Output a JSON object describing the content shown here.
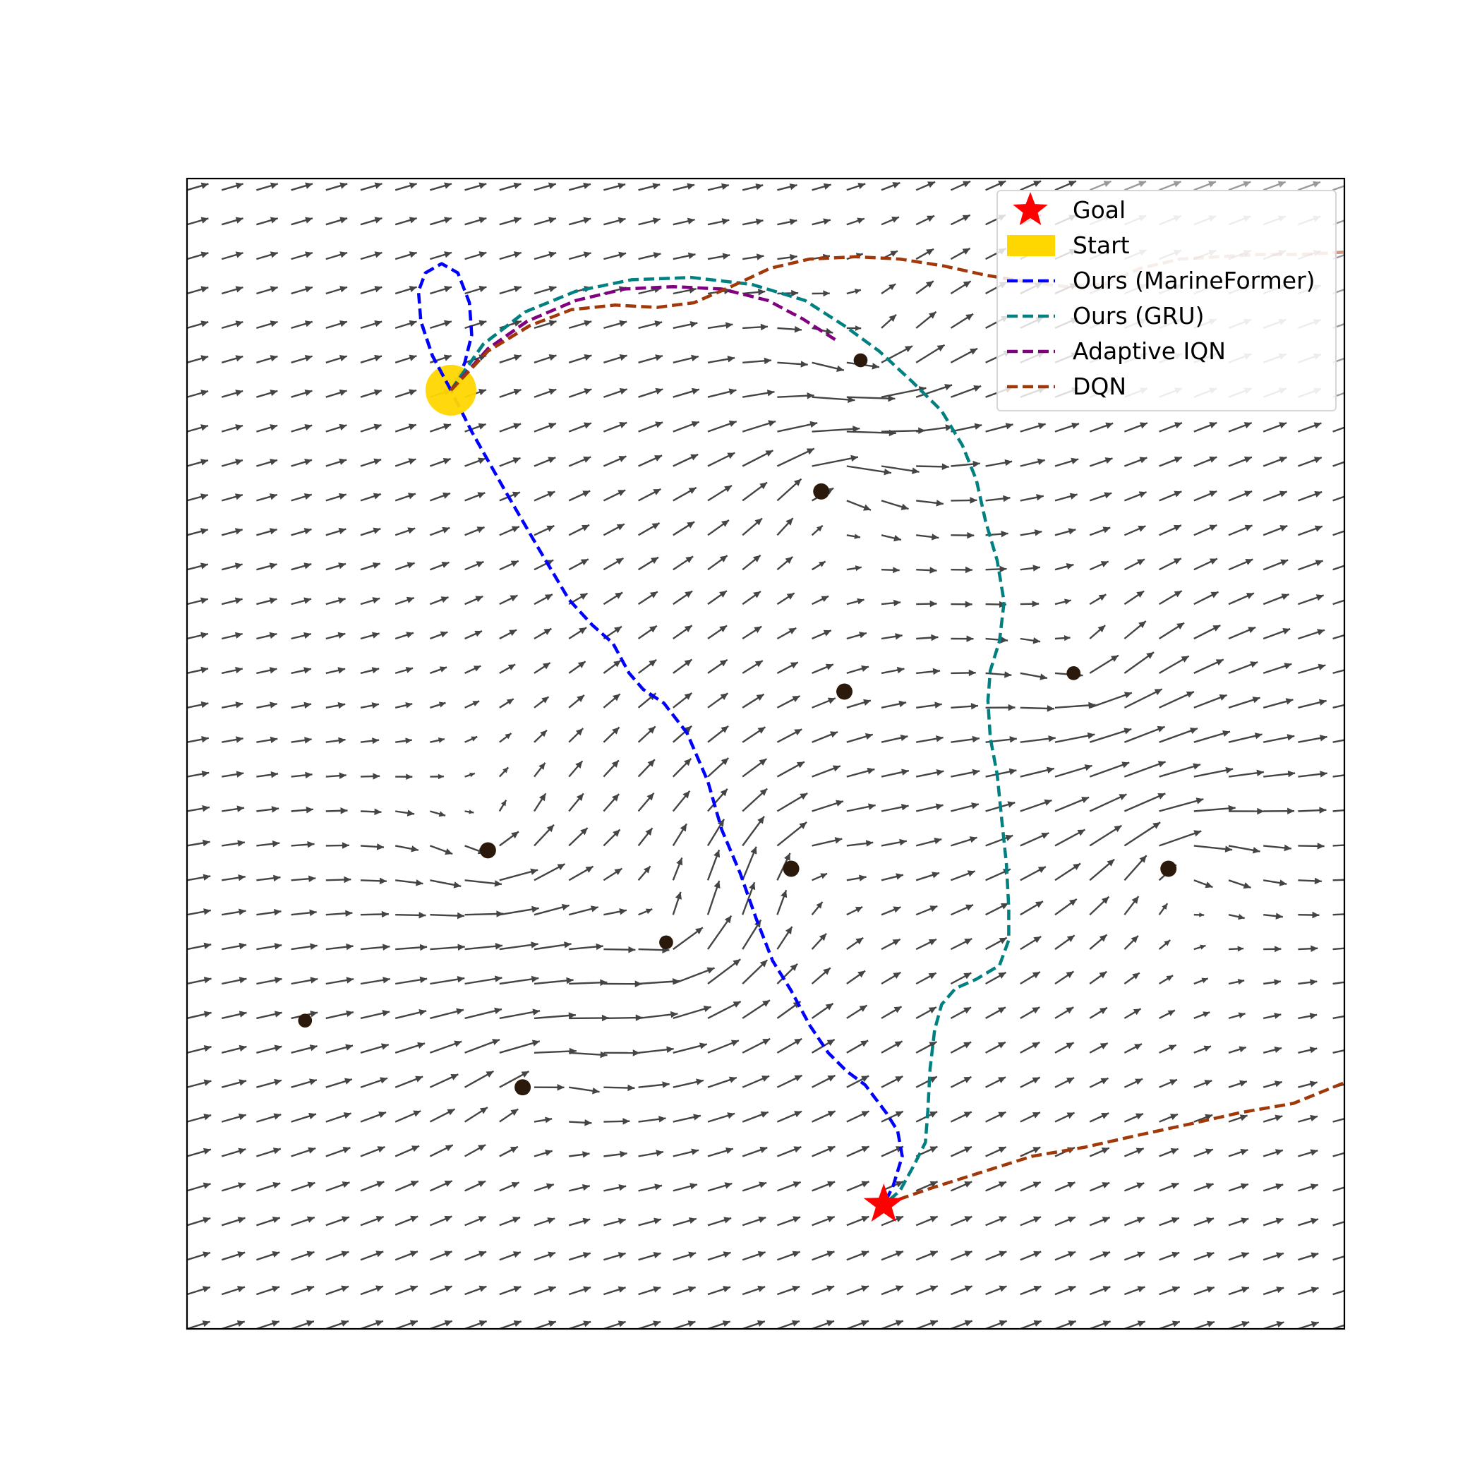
{
  "chart_data": {
    "type": "line",
    "title": "",
    "xlabel": "",
    "ylabel": "",
    "xlim": [
      0,
      50
    ],
    "ylim": [
      0,
      50
    ],
    "grid": false,
    "legend_placement": "top-right",
    "legend": [
      {
        "key": "goal",
        "label": "Goal"
      },
      {
        "key": "start",
        "label": "Start"
      },
      {
        "key": "marineformer",
        "label": "Ours (MarineFormer)"
      },
      {
        "key": "gru",
        "label": "Ours (GRU)"
      },
      {
        "key": "iqn",
        "label": "Adaptive IQN"
      },
      {
        "key": "dqn",
        "label": "DQN"
      }
    ],
    "colors": {
      "goal": "#ff0000",
      "start": "#ffd700",
      "marineformer": "#0000ff",
      "gru": "#008080",
      "iqn": "#800080",
      "dqn": "#a0380a",
      "obstacle": "#2b1a0c",
      "arrow": "#444444"
    },
    "goal": [
      30.1,
      5.4
    ],
    "start": [
      11.4,
      40.8
    ],
    "obstacles": [
      {
        "x": 29.1,
        "y": 42.1,
        "r": 0.3
      },
      {
        "x": 27.4,
        "y": 36.4,
        "r": 0.35
      },
      {
        "x": 28.4,
        "y": 27.7,
        "r": 0.35
      },
      {
        "x": 38.3,
        "y": 28.5,
        "r": 0.3
      },
      {
        "x": 13.0,
        "y": 20.8,
        "r": 0.35
      },
      {
        "x": 26.1,
        "y": 20.0,
        "r": 0.35
      },
      {
        "x": 42.4,
        "y": 20.0,
        "r": 0.35
      },
      {
        "x": 20.7,
        "y": 16.8,
        "r": 0.3
      },
      {
        "x": 5.1,
        "y": 13.4,
        "r": 0.3
      },
      {
        "x": 14.5,
        "y": 10.5,
        "r": 0.35
      }
    ],
    "series": [
      {
        "key": "marineformer",
        "name": "Ours (MarineFormer)",
        "x": [
          11.4,
          10.6,
          10.1,
          10.0,
          10.3,
          11.0,
          11.7,
          12.2,
          12.3,
          12.0,
          11.6,
          11.4,
          12.3,
          13.7,
          15.2,
          16.5,
          17.5,
          18.4,
          19.1,
          19.7,
          20.6,
          21.6,
          22.5,
          23.1,
          23.9,
          24.6,
          25.3,
          26.1,
          26.9,
          27.7,
          28.5,
          29.3,
          30.2,
          30.7,
          30.9,
          30.5,
          30.1
        ],
        "y": [
          40.8,
          42.3,
          43.8,
          45.1,
          45.9,
          46.3,
          45.9,
          44.6,
          43.2,
          42.0,
          41.0,
          40.8,
          39.0,
          36.5,
          33.9,
          31.7,
          30.6,
          29.8,
          28.5,
          27.8,
          27.2,
          25.9,
          23.8,
          21.7,
          19.8,
          17.8,
          16.0,
          14.7,
          13.2,
          12.0,
          11.2,
          10.6,
          9.4,
          8.6,
          7.5,
          6.2,
          5.4
        ]
      },
      {
        "key": "gru",
        "name": "Ours (GRU)",
        "x": [
          11.4,
          12.8,
          14.6,
          16.8,
          19.2,
          21.8,
          24.4,
          26.7,
          28.4,
          29.9,
          31.3,
          32.6,
          33.5,
          34.1,
          34.5,
          35.0,
          35.3,
          35.1,
          34.7,
          34.6,
          34.7,
          35.0,
          35.2,
          35.4,
          35.5,
          35.5,
          35.1,
          34.1,
          33.2,
          32.6,
          32.3,
          32.1,
          32.0,
          31.9,
          31.4,
          30.8,
          30.1
        ],
        "y": [
          40.8,
          42.8,
          44.2,
          45.1,
          45.6,
          45.7,
          45.4,
          44.7,
          43.6,
          42.5,
          41.2,
          39.9,
          38.4,
          36.9,
          35.1,
          33.4,
          31.6,
          29.9,
          28.6,
          27.3,
          25.7,
          24.1,
          22.1,
          20.2,
          18.3,
          16.9,
          15.8,
          15.2,
          14.8,
          14.1,
          13.0,
          11.3,
          9.4,
          8.1,
          7.1,
          6.0,
          5.4
        ]
      },
      {
        "key": "iqn",
        "name": "Adaptive IQN",
        "x": [
          11.4,
          13.0,
          14.7,
          16.8,
          18.9,
          21.0,
          23.1,
          25.1,
          26.6,
          28.0
        ],
        "y": [
          40.8,
          42.6,
          43.8,
          44.7,
          45.2,
          45.3,
          45.2,
          44.7,
          43.9,
          43.0
        ]
      },
      {
        "key": "dqn",
        "name": "DQN",
        "x": [
          11.4,
          13.0,
          14.8,
          16.6,
          18.5,
          20.3,
          21.9,
          23.5,
          25.2,
          26.9,
          28.9,
          30.8,
          32.7,
          34.5,
          36.3
        ],
        "y": [
          40.8,
          42.5,
          43.6,
          44.3,
          44.5,
          44.4,
          44.6,
          45.3,
          46.1,
          46.5,
          46.6,
          46.5,
          46.2,
          45.8,
          45.5
        ]
      },
      {
        "key": "dqn",
        "name": "DQN",
        "faded": true,
        "x": [
          36.3,
          38.0,
          39.6,
          41.2,
          42.9,
          44.6,
          46.3,
          48.1,
          50.0
        ],
        "y": [
          45.5,
          45.3,
          45.4,
          46.1,
          46.5,
          46.6,
          46.7,
          46.7,
          46.8
        ]
      },
      {
        "key": "dqn",
        "name": "DQN",
        "x": [
          30.1,
          32.1,
          34.3,
          36.5,
          38.8,
          41.0,
          43.3,
          45.5,
          47.8,
          50.0
        ],
        "y": [
          5.4,
          6.1,
          6.8,
          7.5,
          7.9,
          8.4,
          8.9,
          9.4,
          9.8,
          10.7
        ]
      }
    ]
  }
}
